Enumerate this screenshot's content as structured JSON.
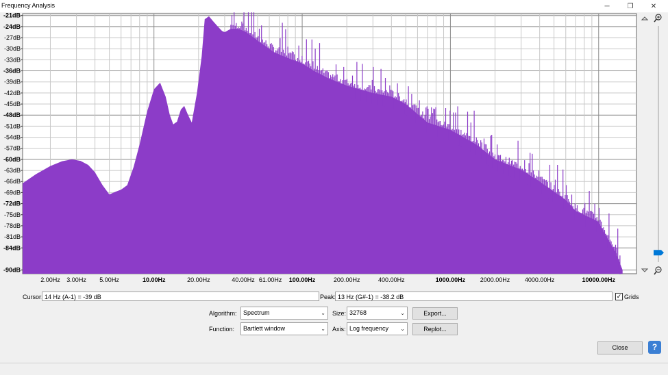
{
  "window": {
    "title": "Frequency Analysis",
    "minimize_glyph": "─",
    "restore_glyph": "❐",
    "close_glyph": "✕"
  },
  "colors": {
    "spectrum_fill": "#8c3cc8",
    "plot_bg": "#ffffff",
    "grid": "#b4b4b4",
    "accent": "#0078d7"
  },
  "chart_data": {
    "type": "area",
    "x_scale": "log",
    "xlim": [
      1.3,
      18000
    ],
    "ylim": [
      -91,
      -20.5
    ],
    "y_ticks": [
      {
        "label": "-21dB",
        "value": -21,
        "major": true
      },
      {
        "label": "-24dB",
        "value": -24,
        "major": true
      },
      {
        "label": "-27dB",
        "value": -27,
        "major": false
      },
      {
        "label": "-30dB",
        "value": -30,
        "major": false
      },
      {
        "label": "-33dB",
        "value": -33,
        "major": false
      },
      {
        "label": "-36dB",
        "value": -36,
        "major": true
      },
      {
        "label": "-39dB",
        "value": -39,
        "major": false
      },
      {
        "label": "-42dB",
        "value": -42,
        "major": false
      },
      {
        "label": "-45dB",
        "value": -45,
        "major": false
      },
      {
        "label": "-48dB",
        "value": -48,
        "major": true
      },
      {
        "label": "-51dB",
        "value": -51,
        "major": false
      },
      {
        "label": "-54dB",
        "value": -54,
        "major": false
      },
      {
        "label": "-57dB",
        "value": -57,
        "major": false
      },
      {
        "label": "-60dB",
        "value": -60,
        "major": true
      },
      {
        "label": "-63dB",
        "value": -63,
        "major": false
      },
      {
        "label": "-66dB",
        "value": -66,
        "major": false
      },
      {
        "label": "-69dB",
        "value": -69,
        "major": false
      },
      {
        "label": "-72dB",
        "value": -72,
        "major": true
      },
      {
        "label": "-75dB",
        "value": -75,
        "major": false
      },
      {
        "label": "-78dB",
        "value": -78,
        "major": false
      },
      {
        "label": "-81dB",
        "value": -81,
        "major": false
      },
      {
        "label": "-84dB",
        "value": -84,
        "major": true
      },
      {
        "label": "-90dB",
        "value": -90,
        "major": true
      }
    ],
    "x_ticks": [
      {
        "label": "2.00Hz",
        "value": 2,
        "major": false
      },
      {
        "label": "3.00Hz",
        "value": 3,
        "major": false
      },
      {
        "label": "5.00Hz",
        "value": 5,
        "major": false
      },
      {
        "label": "10.00Hz",
        "value": 10,
        "major": true
      },
      {
        "label": "20.00Hz",
        "value": 20,
        "major": false
      },
      {
        "label": "40.00Hz",
        "value": 40,
        "major": false
      },
      {
        "label": "61.00Hz",
        "value": 61,
        "major": false,
        "small": true
      },
      {
        "label": "100.00Hz",
        "value": 100,
        "major": true
      },
      {
        "label": "200.00Hz",
        "value": 200,
        "major": false
      },
      {
        "label": "400.00Hz",
        "value": 400,
        "major": false
      },
      {
        "label": "1000.00Hz",
        "value": 1000,
        "major": true
      },
      {
        "label": "2000.00Hz",
        "value": 2000,
        "major": false
      },
      {
        "label": "4000.00Hz",
        "value": 4000,
        "major": false
      },
      {
        "label": "10000.00Hz",
        "value": 10000,
        "major": true
      }
    ],
    "grid": true,
    "series": [
      {
        "x": [
          1.3,
          1.6,
          2.0,
          2.4,
          2.8,
          3.2,
          3.6,
          4.0,
          4.5,
          5.0,
          5.5,
          6.0,
          6.6,
          7.3,
          8.0,
          9.0,
          10.0,
          11.0,
          12.0,
          12.8,
          13.5,
          14.3,
          15.2,
          16.0,
          17.0,
          18.0,
          19.5,
          21.0,
          22.0,
          23.5,
          25.0,
          27.0,
          28.8,
          30.0,
          33.0,
          37.0,
          42.0,
          47.0,
          55.0,
          65.0,
          80.0,
          100.0,
          120.0,
          150.0,
          200.0,
          300.0,
          400.0,
          500.0,
          700.0,
          1000.0,
          1500.0,
          2000.0,
          3000.0,
          4000.0,
          6000.0,
          7000.0,
          9000.0,
          10000.0,
          11500.0,
          13000.0,
          14500.0
        ],
        "y": [
          -66.5,
          -64,
          -61.8,
          -60.5,
          -60,
          -60.4,
          -61.5,
          -63.5,
          -67,
          -69.5,
          -68.8,
          -68.2,
          -67,
          -62,
          -56,
          -47,
          -41,
          -39.2,
          -43,
          -48,
          -50.5,
          -49.8,
          -46.5,
          -45.5,
          -48,
          -50,
          -42,
          -32,
          -22,
          -21.2,
          -22.5,
          -24,
          -25.2,
          -25.5,
          -24.6,
          -24.6,
          -25.5,
          -27,
          -29,
          -31,
          -32.5,
          -34,
          -36,
          -38,
          -40,
          -42,
          -43,
          -45,
          -50,
          -52,
          -56,
          -60,
          -62.8,
          -66,
          -71,
          -74,
          -76,
          -77,
          -81.5,
          -85,
          -90
        ]
      }
    ]
  },
  "controls": {
    "cursor_label": "Cursor:",
    "cursor_value": "14 Hz (A-1) = -39 dB",
    "peak_label": "Peak:",
    "peak_value": "13 Hz (G#-1) = -38.2 dB",
    "grids_label": "Grids",
    "grids_checked": "✓",
    "algorithm_label": "Algorithm:",
    "algorithm_value": "Spectrum",
    "function_label": "Function:",
    "function_value": "Bartlett window",
    "size_label": "Size:",
    "size_value": "32768",
    "axis_label": "Axis:",
    "axis_value": "Log frequency",
    "export_button": "Export...",
    "replot_button": "Replot...",
    "close_button": "Close",
    "help_button": "?",
    "zoom_slider_level": 0.96
  }
}
